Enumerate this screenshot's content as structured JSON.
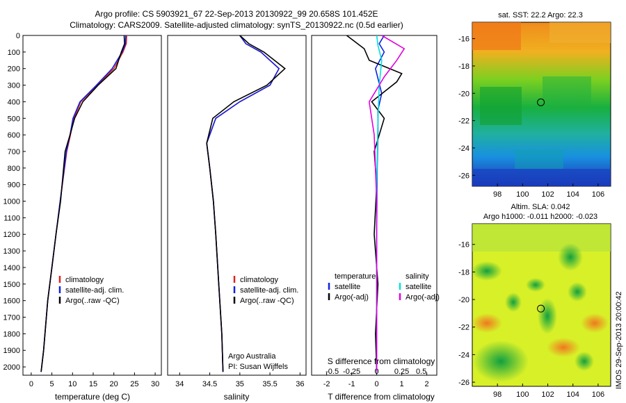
{
  "header": {
    "line1": "Argo profile: CS 5903921_67 22-Sep-2013 20130922_99 20.658S 101.452E",
    "line2": "Climatology: CARS2009. Satellite-adjusted climatology: synTS_20130922.nc (0.5d earlier)"
  },
  "colors": {
    "climatology": "#e02020",
    "satellite": "#1020e0",
    "argo": "#000000",
    "sal_satellite": "#00e0e0",
    "sal_argo": "#e000e0"
  },
  "depth_ticks": [
    0,
    100,
    200,
    300,
    400,
    500,
    600,
    700,
    800,
    900,
    1000,
    1100,
    1200,
    1300,
    1400,
    1500,
    1600,
    1700,
    1800,
    1900,
    2000
  ],
  "chart_data": [
    {
      "type": "line",
      "xlabel": "temperature (deg C)",
      "xlim": [
        -2,
        31.5
      ],
      "ylim": [
        2050,
        0
      ],
      "xticks": [
        0,
        5,
        10,
        15,
        20,
        25,
        30
      ],
      "legend": [
        "climatology",
        "satellite-adj. clim.",
        "Argo(..raw -QC)"
      ],
      "series": [
        {
          "name": "climatology",
          "x": [
            23.1,
            23.0,
            22.2,
            20.0,
            16.0,
            12.0,
            10.3,
            9.5,
            8.6,
            7.0,
            6.0,
            5.0,
            4.0,
            3.0,
            2.4
          ],
          "y": [
            0,
            50,
            100,
            200,
            300,
            400,
            500,
            600,
            700,
            1000,
            1200,
            1400,
            1600,
            1900,
            2030
          ]
        },
        {
          "name": "satellite-adj. clim.",
          "x": [
            22.9,
            22.8,
            22.0,
            19.6,
            15.8,
            11.8,
            10.1,
            9.4,
            8.5,
            7.0,
            6.0,
            5.0,
            4.0,
            3.0,
            2.4
          ],
          "y": [
            0,
            50,
            100,
            200,
            300,
            400,
            500,
            600,
            700,
            1000,
            1200,
            1400,
            1600,
            1900,
            2030
          ]
        },
        {
          "name": "Argo(..raw -QC)",
          "x": [
            22.5,
            22.6,
            21.8,
            20.5,
            16.2,
            12.5,
            10.5,
            9.4,
            8.2,
            7.1,
            6.0,
            5.0,
            4.0,
            3.0,
            2.4
          ],
          "y": [
            0,
            50,
            100,
            200,
            300,
            400,
            500,
            600,
            700,
            1000,
            1200,
            1400,
            1600,
            1900,
            2030
          ]
        }
      ]
    },
    {
      "type": "line",
      "xlabel": "salinity",
      "xlim": [
        33.8,
        36.1
      ],
      "ylim": [
        2050,
        0
      ],
      "xticks": [
        34,
        34.5,
        35,
        35.5,
        36
      ],
      "legend": [
        "climatology",
        "satellite-adj. clim.",
        "Argo(..raw -QC)"
      ],
      "annotation": [
        "Argo Australia",
        "PI: Susan Wijffels"
      ],
      "series": [
        {
          "name": "climatology",
          "x": [
            35.0,
            35.1,
            35.35,
            35.65,
            35.5,
            35.0,
            34.6,
            34.45,
            34.5,
            34.56,
            34.6,
            34.65,
            34.7,
            34.72
          ],
          "y": [
            0,
            50,
            100,
            200,
            300,
            400,
            500,
            650,
            800,
            1000,
            1200,
            1500,
            1800,
            2030
          ]
        },
        {
          "name": "satellite-adj. clim.",
          "x": [
            35.0,
            35.1,
            35.35,
            35.65,
            35.5,
            35.0,
            34.6,
            34.45,
            34.5,
            34.56,
            34.6,
            34.65,
            34.7,
            34.72
          ],
          "y": [
            0,
            50,
            100,
            200,
            300,
            400,
            500,
            650,
            800,
            1000,
            1200,
            1500,
            1800,
            2030
          ]
        },
        {
          "name": "Argo(..raw -QC)",
          "x": [
            35.0,
            35.15,
            35.4,
            35.75,
            35.45,
            34.9,
            34.55,
            34.45,
            34.5,
            34.56,
            34.6,
            34.65,
            34.7,
            34.72
          ],
          "y": [
            0,
            50,
            100,
            200,
            300,
            400,
            500,
            650,
            800,
            1000,
            1200,
            1500,
            1800,
            2030
          ]
        }
      ]
    },
    {
      "type": "line",
      "xlabel": "T difference from climatology",
      "top_axis_label": "S difference from climatology",
      "xlim": [
        -2.6,
        2.4
      ],
      "ylim": [
        2050,
        0
      ],
      "xticks": [
        -2,
        -1,
        0,
        1,
        2
      ],
      "top_xticks": [
        -0.5,
        -0.25,
        0,
        0.25,
        0.5
      ],
      "legend_temperature": [
        "temperature",
        "satellite",
        "Argo(-adj)"
      ],
      "legend_salinity": [
        "salinity",
        "satellite",
        "Argo(-adj)"
      ],
      "series": [
        {
          "name": "satellite",
          "x": [
            0.3,
            0.1,
            0.3,
            -0.05,
            0.2,
            0.05,
            0.05,
            0.02,
            0.0,
            0.0,
            0.0
          ],
          "y": [
            0,
            50,
            100,
            200,
            350,
            450,
            600,
            800,
            1200,
            1600,
            2030
          ]
        },
        {
          "name": "Argo(-adj)",
          "x": [
            -1.2,
            -0.5,
            -0.3,
            1.0,
            0.8,
            -0.2,
            0.3,
            -0.1,
            0.0,
            -0.1,
            0.05,
            -0.05,
            0.0
          ],
          "y": [
            0,
            80,
            150,
            230,
            280,
            400,
            500,
            700,
            900,
            1200,
            1500,
            1800,
            2030
          ]
        },
        {
          "name": "salinity satellite",
          "x": [
            0.0,
            0.05,
            0.2,
            0.1,
            0.05,
            0.0,
            0.0,
            0.0
          ],
          "y": [
            0,
            60,
            150,
            300,
            500,
            900,
            1500,
            2030
          ]
        },
        {
          "name": "salinity Argo(-adj)",
          "x": [
            0.2,
            1.1,
            0.8,
            0.3,
            -0.3,
            -0.1,
            0.0,
            0.0
          ],
          "y": [
            0,
            80,
            150,
            250,
            400,
            600,
            1000,
            2030
          ]
        }
      ]
    },
    {
      "type": "heatmap",
      "title": "sat. SST: 22.2 Argo: 22.3",
      "xlim": [
        96,
        107
      ],
      "ylim": [
        -26.8,
        -14.8
      ],
      "xticks": [
        98,
        100,
        102,
        104,
        106
      ],
      "yticks": [
        -16,
        -18,
        -20,
        -22,
        -24,
        -26
      ],
      "marker": [
        101.45,
        -20.66
      ]
    },
    {
      "type": "heatmap",
      "title": "Altim. SLA: 0.042",
      "subtitle": "Argo h1000: -0.011 h2000: -0.023",
      "xlim": [
        96,
        107
      ],
      "ylim": [
        -26.3,
        -14.5
      ],
      "xticks": [
        98,
        100,
        102,
        104,
        106
      ],
      "yticks": [
        -16,
        -18,
        -20,
        -22,
        -24,
        -26
      ],
      "marker": [
        101.45,
        -20.66
      ]
    }
  ],
  "side_note": "IMOS 29-Sep-2013 20:00:42"
}
